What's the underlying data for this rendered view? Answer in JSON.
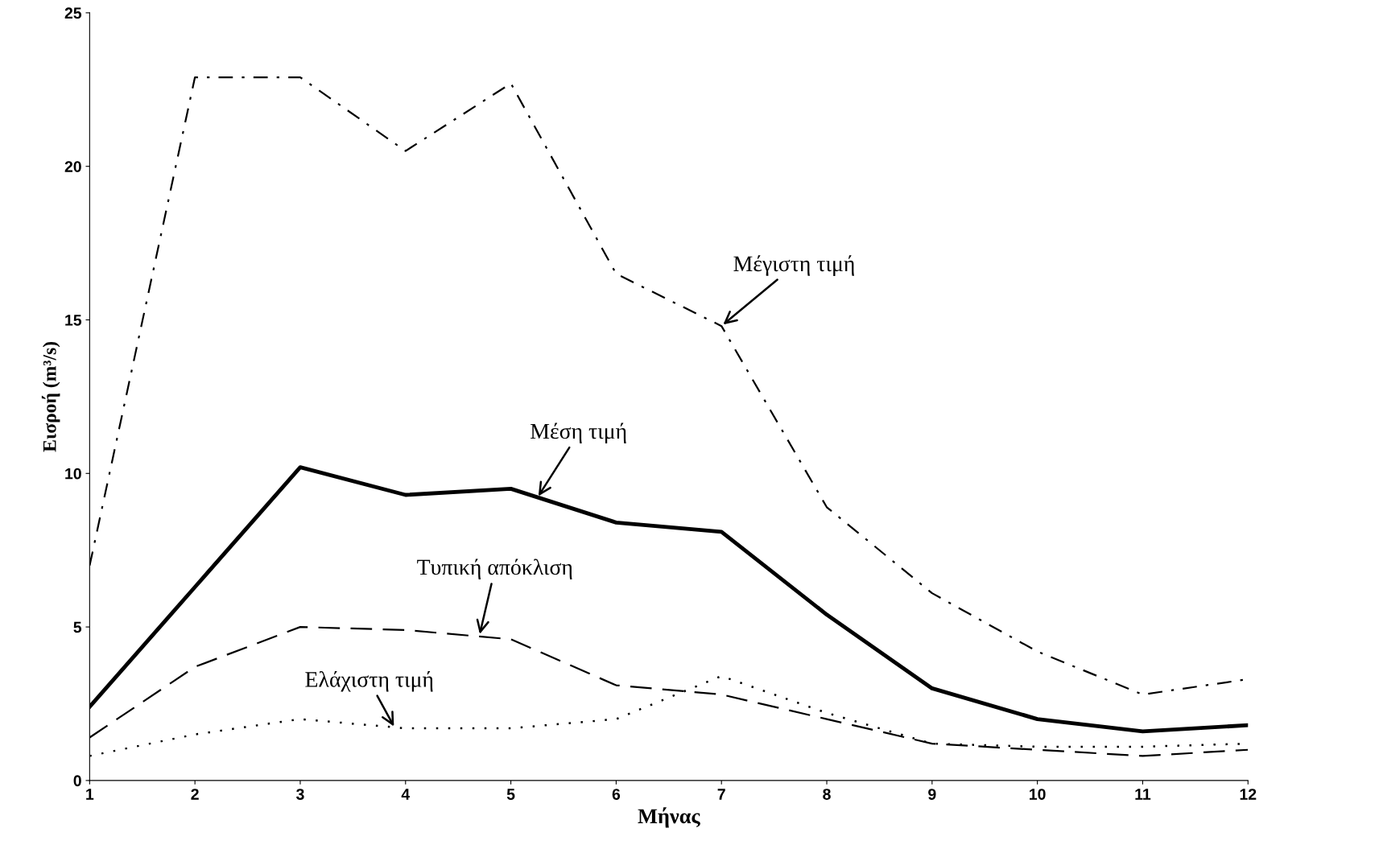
{
  "chart_data": {
    "type": "line",
    "xlabel": "Μήνας",
    "ylabel": "Εισροή (m³/s)",
    "x": [
      1,
      2,
      3,
      4,
      5,
      6,
      7,
      8,
      9,
      10,
      11,
      12
    ],
    "series": [
      {
        "color": "#000000",
        "line_style": "dashdot",
        "values": [
          7.0,
          22.9,
          22.9,
          20.5,
          22.7,
          16.5,
          14.8,
          8.9,
          6.1,
          4.2,
          2.8,
          3.3
        ]
      },
      {
        "color": "#000000",
        "line_style": "solid",
        "values": [
          2.4,
          6.3,
          10.2,
          9.3,
          9.5,
          8.4,
          8.1,
          5.4,
          3.0,
          2.0,
          1.6,
          1.8
        ]
      },
      {
        "color": "#000000",
        "line_style": "dashed",
        "values": [
          1.4,
          3.7,
          5.0,
          4.9,
          4.6,
          3.1,
          2.8,
          2.0,
          1.2,
          1.0,
          0.8,
          1.0
        ]
      },
      {
        "color": "#000000",
        "line_style": "dotted",
        "values": [
          0.8,
          1.5,
          2.0,
          1.7,
          1.7,
          2.0,
          3.4,
          2.2,
          1.2,
          1.1,
          1.1,
          1.2
        ]
      }
    ],
    "annotations": [
      {
        "text": "Μέγιστη τιμή",
        "x": 7.0,
        "y": 14.8
      },
      {
        "text": "Μέση τιμή",
        "x": 5.25,
        "y": 9.2
      },
      {
        "text": "Τυπική απόκλιση",
        "x": 4.7,
        "y": 4.7
      },
      {
        "text": "Ελάχιστη τιμή",
        "x": 3.9,
        "y": 1.7
      }
    ],
    "xlim": [
      1,
      12
    ],
    "xticks": [
      1,
      2,
      3,
      4,
      5,
      6,
      7,
      8,
      9,
      10,
      11,
      12
    ],
    "ylim": [
      0,
      25
    ],
    "yticks": [
      0,
      5,
      10,
      15,
      20,
      25
    ],
    "grid": false,
    "legend": false,
    "marker": "none"
  }
}
